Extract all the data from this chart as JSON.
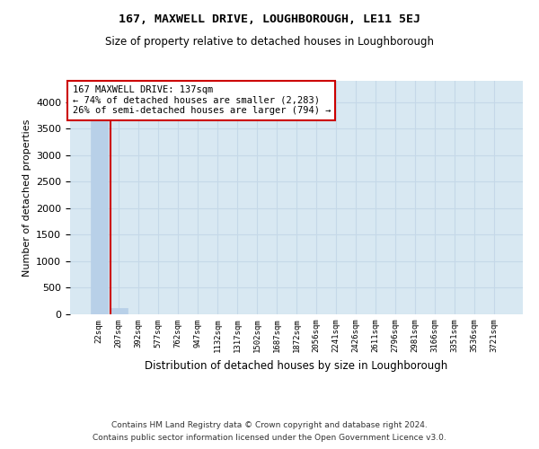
{
  "title": "167, MAXWELL DRIVE, LOUGHBOROUGH, LE11 5EJ",
  "subtitle": "Size of property relative to detached houses in Loughborough",
  "xlabel": "Distribution of detached houses by size in Loughborough",
  "ylabel": "Number of detached properties",
  "footnote1": "Contains HM Land Registry data © Crown copyright and database right 2024.",
  "footnote2": "Contains public sector information licensed under the Open Government Licence v3.0.",
  "categories": [
    "22sqm",
    "207sqm",
    "392sqm",
    "577sqm",
    "762sqm",
    "947sqm",
    "1132sqm",
    "1317sqm",
    "1502sqm",
    "1687sqm",
    "1872sqm",
    "2056sqm",
    "2241sqm",
    "2426sqm",
    "2611sqm",
    "2796sqm",
    "2981sqm",
    "3166sqm",
    "3351sqm",
    "3536sqm",
    "3721sqm"
  ],
  "values": [
    3900,
    120,
    0,
    0,
    0,
    0,
    0,
    0,
    0,
    0,
    0,
    0,
    0,
    0,
    0,
    0,
    0,
    0,
    0,
    0,
    0
  ],
  "bar_color": "#b8d0e8",
  "bar_edge_color": "#b8d0e8",
  "annotation_text_line1": "167 MAXWELL DRIVE: 137sqm",
  "annotation_text_line2": "← 74% of detached houses are smaller (2,283)",
  "annotation_text_line3": "26% of semi-detached houses are larger (794) →",
  "annotation_box_facecolor": "#ffffff",
  "annotation_box_edgecolor": "#cc0000",
  "red_line_color": "#cc0000",
  "ylim": [
    0,
    4400
  ],
  "yticks": [
    0,
    500,
    1000,
    1500,
    2000,
    2500,
    3000,
    3500,
    4000
  ],
  "grid_color": "#c5d8e8",
  "background_color": "#d8e8f2",
  "figure_bg": "#ffffff"
}
